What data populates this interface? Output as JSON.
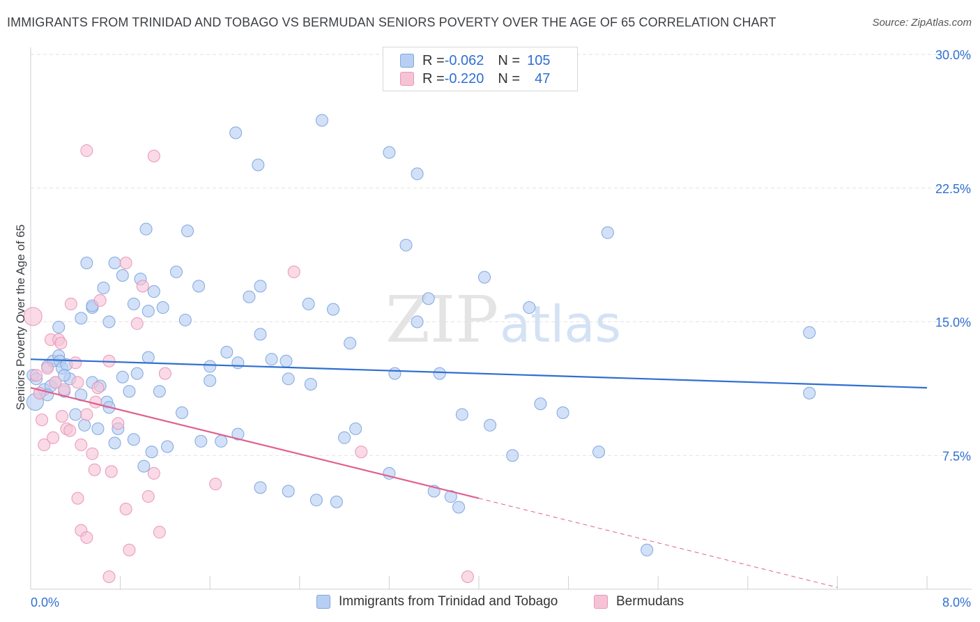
{
  "title": "IMMIGRANTS FROM TRINIDAD AND TOBAGO VS BERMUDAN SENIORS POVERTY OVER THE AGE OF 65 CORRELATION CHART",
  "source": "Source: ZipAtlas.com",
  "watermark": {
    "zip": "ZIP",
    "atlas": "atlas"
  },
  "legend": {
    "rows": [
      {
        "r_label": "R = ",
        "r_value": "-0.062",
        "n_label": "N = ",
        "n_value": "105"
      },
      {
        "r_label": "R = ",
        "r_value": "-0.220",
        "n_label": "N = ",
        "n_value": "47"
      }
    ]
  },
  "colors": {
    "blue_fill": "#b7cff2",
    "blue_stroke": "#7fa6e0",
    "blue_line": "#2f6fd1",
    "pink_fill": "#f6c3d6",
    "pink_stroke": "#e996b6",
    "pink_line": "#e0608e",
    "grid": "#e2e2e2",
    "tick_label": "#2f6fd1"
  },
  "chart_data": {
    "type": "scatter",
    "title": "IMMIGRANTS FROM TRINIDAD AND TOBAGO VS BERMUDAN SENIORS POVERTY OVER THE AGE OF 65 CORRELATION CHART",
    "xlabel": "",
    "ylabel": "Seniors Poverty Over the Age of 65",
    "xlim": [
      0,
      8
    ],
    "ylim": [
      0,
      30
    ],
    "x_tick_labels": [
      "0.0%",
      "8.0%"
    ],
    "y_ticks": [
      7.5,
      15.0,
      22.5,
      30.0
    ],
    "y_tick_labels": [
      "7.5%",
      "15.0%",
      "22.5%",
      "30.0%"
    ],
    "grid": "horizontal dashed",
    "legend_placement": "bottom-center",
    "series": [
      {
        "name": "Immigrants from Trinidad and Tobago",
        "trend": [
          [
            0.0,
            12.9
          ],
          [
            8.0,
            11.3
          ]
        ],
        "points": [
          [
            0.02,
            12.0
          ],
          [
            0.04,
            10.5
          ],
          [
            0.05,
            11.8
          ],
          [
            0.08,
            11.0
          ],
          [
            0.12,
            11.2
          ],
          [
            0.15,
            12.5
          ],
          [
            0.18,
            11.4
          ],
          [
            0.2,
            12.8
          ],
          [
            0.22,
            11.6
          ],
          [
            0.25,
            13.1
          ],
          [
            0.26,
            12.8
          ],
          [
            0.28,
            12.4
          ],
          [
            0.3,
            11.1
          ],
          [
            0.35,
            11.8
          ],
          [
            0.45,
            10.9
          ],
          [
            0.48,
            9.2
          ],
          [
            0.55,
            11.6
          ],
          [
            0.6,
            9.0
          ],
          [
            0.68,
            10.5
          ],
          [
            0.7,
            10.2
          ],
          [
            0.75,
            8.2
          ],
          [
            0.78,
            9.0
          ],
          [
            0.82,
            11.9
          ],
          [
            0.88,
            11.1
          ],
          [
            0.92,
            8.4
          ],
          [
            0.95,
            12.1
          ],
          [
            1.01,
            6.9
          ],
          [
            1.08,
            7.7
          ],
          [
            1.15,
            11.1
          ],
          [
            1.22,
            8.0
          ],
          [
            1.35,
            9.9
          ],
          [
            1.52,
            8.3
          ],
          [
            1.7,
            8.3
          ],
          [
            1.85,
            8.7
          ],
          [
            2.05,
            5.7
          ],
          [
            2.3,
            5.5
          ],
          [
            2.55,
            5.0
          ],
          [
            2.73,
            4.9
          ],
          [
            2.8,
            8.5
          ],
          [
            2.9,
            9.0
          ],
          [
            3.2,
            6.5
          ],
          [
            3.6,
            5.5
          ],
          [
            3.75,
            5.2
          ],
          [
            3.82,
            4.6
          ],
          [
            4.1,
            9.2
          ],
          [
            4.3,
            7.5
          ],
          [
            4.75,
            9.9
          ],
          [
            5.07,
            7.7
          ],
          [
            5.5,
            2.2
          ],
          [
            6.95,
            11.0
          ],
          [
            0.25,
            14.7
          ],
          [
            0.32,
            12.6
          ],
          [
            0.45,
            15.2
          ],
          [
            0.55,
            15.8
          ],
          [
            0.65,
            16.9
          ],
          [
            0.7,
            15.0
          ],
          [
            0.75,
            18.3
          ],
          [
            0.82,
            17.6
          ],
          [
            0.92,
            16.0
          ],
          [
            0.98,
            17.4
          ],
          [
            1.05,
            15.6
          ],
          [
            1.1,
            16.7
          ],
          [
            1.18,
            15.8
          ],
          [
            1.3,
            17.8
          ],
          [
            1.38,
            15.1
          ],
          [
            1.5,
            17.0
          ],
          [
            1.6,
            11.7
          ],
          [
            1.75,
            13.3
          ],
          [
            1.85,
            12.7
          ],
          [
            1.95,
            16.4
          ],
          [
            2.05,
            17.0
          ],
          [
            2.05,
            14.3
          ],
          [
            2.15,
            12.9
          ],
          [
            2.28,
            12.8
          ],
          [
            2.48,
            16.0
          ],
          [
            2.7,
            15.7
          ],
          [
            2.85,
            13.8
          ],
          [
            3.25,
            12.1
          ],
          [
            3.45,
            15.0
          ],
          [
            3.55,
            16.3
          ],
          [
            3.65,
            12.1
          ],
          [
            4.05,
            17.5
          ],
          [
            4.45,
            15.8
          ],
          [
            5.15,
            20.0
          ],
          [
            6.95,
            14.4
          ],
          [
            1.03,
            20.2
          ],
          [
            1.4,
            20.1
          ],
          [
            1.83,
            25.6
          ],
          [
            2.03,
            23.8
          ],
          [
            2.6,
            26.3
          ],
          [
            3.2,
            24.5
          ],
          [
            3.45,
            23.3
          ],
          [
            3.35,
            19.3
          ],
          [
            0.5,
            18.3
          ],
          [
            0.55,
            15.9
          ],
          [
            1.05,
            13.0
          ],
          [
            1.6,
            12.5
          ],
          [
            2.5,
            11.5
          ],
          [
            0.15,
            10.9
          ],
          [
            0.3,
            12.0
          ],
          [
            0.62,
            11.4
          ],
          [
            2.3,
            11.8
          ],
          [
            3.85,
            9.8
          ],
          [
            4.55,
            10.4
          ],
          [
            0.4,
            9.8
          ]
        ]
      },
      {
        "name": "Bermudans",
        "trend": [
          [
            0.0,
            11.3
          ],
          [
            4.0,
            5.1
          ]
        ],
        "trend_extension": [
          [
            4.0,
            5.1
          ],
          [
            7.2,
            0.1
          ]
        ],
        "points": [
          [
            0.02,
            15.3
          ],
          [
            0.05,
            12.0
          ],
          [
            0.08,
            11.0
          ],
          [
            0.1,
            9.5
          ],
          [
            0.12,
            8.1
          ],
          [
            0.15,
            12.4
          ],
          [
            0.18,
            14.0
          ],
          [
            0.22,
            11.6
          ],
          [
            0.25,
            14.0
          ],
          [
            0.27,
            13.8
          ],
          [
            0.3,
            11.2
          ],
          [
            0.32,
            9.0
          ],
          [
            0.35,
            8.9
          ],
          [
            0.36,
            16.0
          ],
          [
            0.4,
            12.7
          ],
          [
            0.42,
            11.6
          ],
          [
            0.45,
            8.1
          ],
          [
            0.5,
            9.8
          ],
          [
            0.55,
            7.6
          ],
          [
            0.57,
            6.7
          ],
          [
            0.62,
            16.2
          ],
          [
            0.7,
            12.8
          ],
          [
            0.72,
            6.6
          ],
          [
            0.78,
            9.3
          ],
          [
            0.85,
            4.5
          ],
          [
            0.88,
            2.2
          ],
          [
            0.95,
            14.9
          ],
          [
            1.0,
            17.0
          ],
          [
            1.05,
            5.2
          ],
          [
            1.1,
            6.5
          ],
          [
            1.15,
            3.2
          ],
          [
            1.2,
            12.1
          ],
          [
            0.5,
            24.6
          ],
          [
            1.1,
            24.3
          ],
          [
            0.85,
            18.3
          ],
          [
            2.35,
            17.8
          ],
          [
            1.65,
            5.9
          ],
          [
            2.95,
            7.7
          ],
          [
            0.45,
            3.3
          ],
          [
            0.5,
            2.9
          ],
          [
            0.7,
            0.7
          ],
          [
            3.9,
            0.7
          ],
          [
            0.42,
            5.1
          ],
          [
            0.2,
            8.5
          ],
          [
            0.28,
            9.7
          ],
          [
            0.6,
            11.3
          ],
          [
            0.58,
            10.5
          ]
        ]
      }
    ]
  },
  "bottom_legend": {
    "items": [
      {
        "label": "Immigrants from Trinidad and Tobago"
      },
      {
        "label": "Bermudans"
      }
    ]
  }
}
